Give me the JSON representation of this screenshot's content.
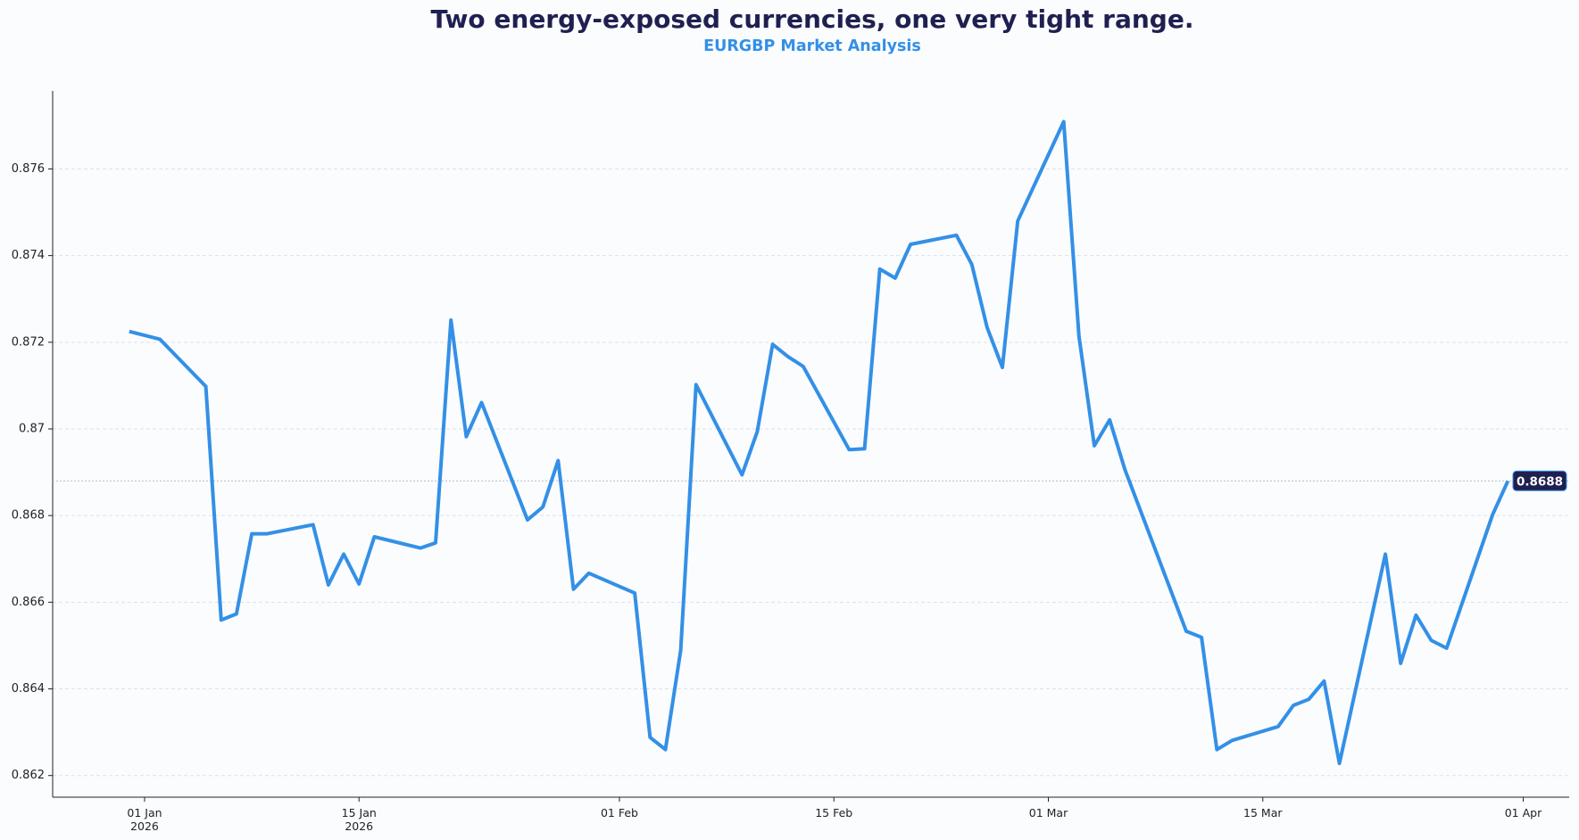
{
  "chart_data": {
    "type": "line",
    "title": "Two energy-exposed currencies, one very tight range.",
    "subtitle": "EURGBP Market Analysis",
    "x": [
      "2025-12-31",
      "2026-01-02",
      "2026-01-05",
      "2026-01-06",
      "2026-01-07",
      "2026-01-08",
      "2026-01-09",
      "2026-01-12",
      "2026-01-13",
      "2026-01-14",
      "2026-01-15",
      "2026-01-16",
      "2026-01-19",
      "2026-01-20",
      "2026-01-21",
      "2026-01-22",
      "2026-01-23",
      "2026-01-26",
      "2026-01-27",
      "2026-01-28",
      "2026-01-29",
      "2026-01-30",
      "2026-02-02",
      "2026-02-03",
      "2026-02-04",
      "2026-02-05",
      "2026-02-06",
      "2026-02-09",
      "2026-02-10",
      "2026-02-11",
      "2026-02-12",
      "2026-02-13",
      "2026-02-16",
      "2026-02-17",
      "2026-02-18",
      "2026-02-19",
      "2026-02-20",
      "2026-02-23",
      "2026-02-24",
      "2026-02-25",
      "2026-02-26",
      "2026-02-27",
      "2026-03-02",
      "2026-03-03",
      "2026-03-04",
      "2026-03-05",
      "2026-03-06",
      "2026-03-10",
      "2026-03-11",
      "2026-03-12",
      "2026-03-13",
      "2026-03-16",
      "2026-03-17",
      "2026-03-18",
      "2026-03-19",
      "2026-03-20",
      "2026-03-23",
      "2026-03-24",
      "2026-03-25",
      "2026-03-26",
      "2026-03-27",
      "2026-03-30",
      "2026-03-31"
    ],
    "series": [
      {
        "name": "EURGBP",
        "color": "#3390e6",
        "values": [
          0.87225,
          0.87207,
          0.87098,
          0.86559,
          0.86573,
          0.86758,
          0.86758,
          0.86779,
          0.8664,
          0.86711,
          0.86642,
          0.86751,
          0.86725,
          0.86737,
          0.87251,
          0.86982,
          0.87061,
          0.8679,
          0.8682,
          0.86927,
          0.8663,
          0.86667,
          0.86621,
          0.86288,
          0.8626,
          0.86489,
          0.87102,
          0.86894,
          0.86994,
          0.87195,
          0.87167,
          0.87144,
          0.86952,
          0.86954,
          0.87369,
          0.87348,
          0.87426,
          0.87447,
          0.8738,
          0.87234,
          0.87142,
          0.8748,
          0.87709,
          0.87214,
          0.86961,
          0.87021,
          0.86906,
          0.86533,
          0.86519,
          0.8626,
          0.86281,
          0.86313,
          0.86362,
          0.86376,
          0.86418,
          0.86228,
          0.86711,
          0.86459,
          0.8657,
          0.86512,
          0.86494,
          0.86802,
          0.8688
        ]
      }
    ],
    "last_value": {
      "value": 0.8688,
      "label": "0.8688"
    },
    "xlim": [
      "2025-12-26",
      "2026-04-04"
    ],
    "xticks": [
      {
        "value": "2026-01-01",
        "label": "01 Jan\n2026"
      },
      {
        "value": "2026-01-15",
        "label": "15 Jan\n2026"
      },
      {
        "value": "2026-02-01",
        "label": "01 Feb"
      },
      {
        "value": "2026-02-15",
        "label": "15 Feb"
      },
      {
        "value": "2026-03-01",
        "label": "01 Mar"
      },
      {
        "value": "2026-03-15",
        "label": "15 Mar"
      },
      {
        "value": "2026-04-01",
        "label": "01 Apr"
      }
    ],
    "ylim": [
      0.8615,
      0.8778
    ],
    "yticks": [
      0.862,
      0.864,
      0.866,
      0.868,
      0.87,
      0.872,
      0.874,
      0.876
    ],
    "grid": true
  }
}
